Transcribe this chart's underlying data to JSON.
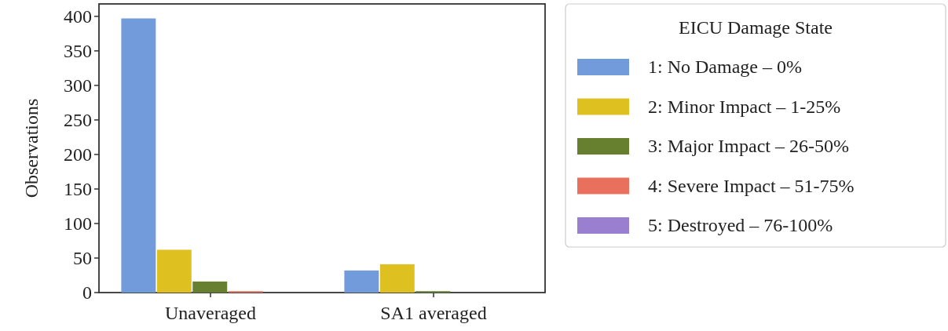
{
  "chart_data": {
    "type": "bar",
    "categories": [
      "Unaveraged",
      "SA1 averaged"
    ],
    "ylabel": "Observations",
    "legend_title": "EICU Damage State",
    "ylim": [
      0,
      418
    ],
    "yticks": [
      0,
      50,
      100,
      150,
      200,
      250,
      300,
      350,
      400
    ],
    "legend": "right",
    "series": [
      {
        "name": "1: No Damage – 0%",
        "color": "#729bdc",
        "values": [
          397,
          32
        ]
      },
      {
        "name": "2: Minor Impact – 1-25%",
        "color": "#dfc021",
        "values": [
          62,
          41
        ]
      },
      {
        "name": "3: Major Impact – 26-50%",
        "color": "#66802f",
        "values": [
          16,
          2
        ]
      },
      {
        "name": "4: Severe Impact – 51-75%",
        "color": "#e8705c",
        "values": [
          2,
          0
        ]
      },
      {
        "name": "5: Destroyed – 76-100%",
        "color": "#9a7fd0",
        "values": [
          0,
          0
        ]
      }
    ]
  }
}
